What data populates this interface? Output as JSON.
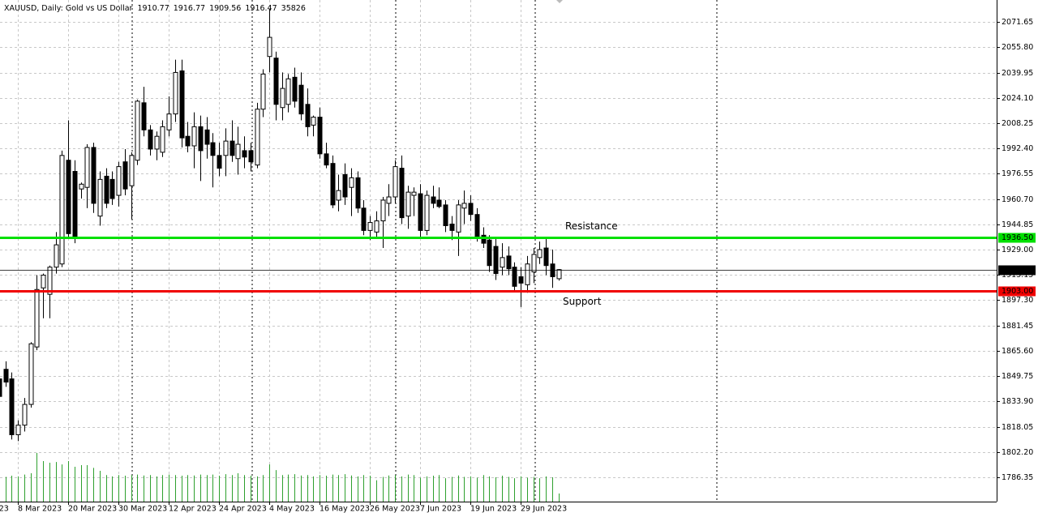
{
  "chart_data": {
    "type": "candlestick",
    "title": "XAUUSD, Daily:  Gold vs US Dollar",
    "categories": [
      "23",
      null,
      null,
      "8 Mar 2023",
      null,
      null,
      null,
      null,
      null,
      null,
      null,
      "20 Mar 2023",
      null,
      null,
      null,
      null,
      null,
      null,
      null,
      "30 Mar 2023",
      null,
      null,
      null,
      null,
      null,
      null,
      null,
      "12 Apr 2023",
      null,
      null,
      null,
      null,
      null,
      null,
      null,
      "24 Apr 2023",
      null,
      null,
      null,
      null,
      null,
      null,
      null,
      "4 May 2023",
      null,
      null,
      null,
      null,
      null,
      null,
      null,
      "16 May 2023",
      null,
      null,
      null,
      null,
      null,
      null,
      null,
      "26 May 2023",
      null,
      null,
      null,
      null,
      null,
      null,
      null,
      "7 Jun 2023",
      null,
      null,
      null,
      null,
      null,
      null,
      null,
      "19 Jun 2023",
      null,
      null,
      null,
      null,
      null,
      null,
      null,
      "29 Jun 2023",
      null,
      null,
      null,
      null,
      null,
      null
    ],
    "open": [
      1848,
      1854,
      1848,
      1813,
      1819,
      1832,
      1868,
      1905,
      1901,
      1918,
      1920,
      1985,
      1978,
      1967,
      1968,
      1993,
      1950,
      1975,
      1973,
      1963,
      1984,
      1969,
      1985,
      2021,
      2004,
      1992,
      1990,
      2004,
      2014,
      2041,
      2000,
      1994,
      2006,
      2004,
      1996,
      1988,
      1988,
      1997,
      1986,
      1991,
      1991,
      1982,
      2017,
      2050,
      2049,
      2018,
      2020,
      2037,
      2032,
      2020,
      2007,
      2012,
      1989,
      1983,
      1960,
      1976,
      1968,
      1974,
      1955,
      1941,
      1940,
      1947,
      1958,
      1962,
      1980,
      1950,
      1963,
      1964,
      1941,
      1962,
      1960,
      1957,
      1945,
      1940,
      1955,
      1958,
      1951,
      1938,
      1935,
      1931,
      1918,
      1925,
      1918,
      1912,
      1907,
      1915,
      1924,
      1930,
      1920,
      1910.77
    ],
    "high": [
      1852,
      1859,
      1852,
      1822,
      1836,
      1871,
      1913,
      1914,
      1919,
      1940,
      1991,
      2010,
      1985,
      1971,
      1995,
      1996,
      1978,
      1980,
      1978,
      1984,
      1992,
      1990,
      2023,
      2031,
      2007,
      2003,
      2010,
      2025,
      2048,
      2048,
      2009,
      2015,
      2013,
      2012,
      2002,
      1996,
      2005,
      2010,
      2006,
      2000,
      1996,
      2021,
      2042,
      2080,
      2053,
      2040,
      2039,
      2043,
      2040,
      2030,
      2013,
      2018,
      1996,
      1988,
      1976,
      1983,
      1980,
      1978,
      1960,
      1950,
      1953,
      1962,
      1970,
      1985,
      1988,
      1969,
      1968,
      1970,
      1966,
      1969,
      1968,
      1960,
      1950,
      1960,
      1966,
      1963,
      1955,
      1943,
      1938,
      1936,
      1933,
      1931,
      1921,
      1918,
      1925,
      1930,
      1934,
      1937,
      1929,
      1916.77
    ],
    "low": [
      1832,
      1843,
      1810,
      1809,
      1815,
      1830,
      1866,
      1886,
      1886,
      1914,
      1918,
      1936,
      1933,
      1961,
      1955,
      1952,
      1944,
      1955,
      1957,
      1956,
      1963,
      1948,
      1982,
      2000,
      1988,
      1985,
      1987,
      2000,
      2009,
      1993,
      1990,
      1980,
      1972,
      1986,
      1968,
      1975,
      1975,
      1984,
      1976,
      1980,
      1978,
      1980,
      2012,
      2040,
      2010,
      2010,
      2015,
      2018,
      2010,
      2000,
      2000,
      1986,
      1980,
      1955,
      1953,
      1957,
      1950,
      1952,
      1938,
      1935,
      1936,
      1930,
      1950,
      1958,
      1945,
      1942,
      1950,
      1937,
      1938,
      1955,
      1955,
      1940,
      1935,
      1925,
      1945,
      1947,
      1934,
      1930,
      1915,
      1910,
      1913,
      1913,
      1903,
      1893,
      1902,
      1908,
      1920,
      1913,
      1905,
      1909.56
    ],
    "close": [
      1837,
      1846,
      1813,
      1819,
      1832,
      1870,
      1904,
      1913,
      1918,
      1932,
      1988,
      1939,
      1937,
      1970,
      1993,
      1958,
      1973,
      1958,
      1961,
      1981,
      1967,
      1988,
      2022,
      2004,
      1992,
      2000,
      2006,
      2014,
      2040,
      1999,
      1994,
      2006,
      1991,
      1995,
      1988,
      1980,
      1997,
      1988,
      1995,
      1987,
      1984,
      2017,
      2039,
      2062,
      2020,
      2030,
      2036,
      2022,
      2014,
      2006,
      2012,
      1989,
      1982,
      1957,
      1966,
      1962,
      1974,
      1955,
      1941,
      1946,
      1947,
      1960,
      1962,
      1981,
      1949,
      1965,
      1965,
      1941,
      1963,
      1958,
      1956,
      1944,
      1941,
      1957,
      1958,
      1951,
      1937,
      1933,
      1919,
      1914,
      1924,
      1917,
      1906,
      1908,
      1920,
      1926,
      1929,
      1919,
      1912,
      1916.47
    ],
    "volume": [
      118000,
      110000,
      115000,
      112000,
      120000,
      126000,
      216000,
      180000,
      173000,
      176000,
      165000,
      180000,
      155000,
      162000,
      162000,
      150000,
      137000,
      118000,
      112000,
      118000,
      115000,
      118000,
      120000,
      116000,
      118000,
      112000,
      118000,
      120000,
      118000,
      115000,
      118000,
      116000,
      120000,
      118000,
      120000,
      115000,
      122000,
      118000,
      126000,
      118000,
      115000,
      112000,
      118000,
      165000,
      140000,
      118000,
      120000,
      122000,
      116000,
      118000,
      112000,
      118000,
      115000,
      120000,
      118000,
      122000,
      116000,
      112000,
      118000,
      115000,
      95000,
      110000,
      116000,
      118000,
      112000,
      120000,
      118000,
      106000,
      112000,
      115000,
      118000,
      104000,
      110000,
      116000,
      110000,
      112000,
      106000,
      118000,
      112000,
      108000,
      115000,
      110000,
      104000,
      112000,
      106000,
      110000,
      104000,
      112000,
      108000,
      35826
    ],
    "bull_color": "#ffffff",
    "bear_color": "#000000",
    "volume_color": "#2ea02e",
    "ylim": [
      1771.1,
      2085.4
    ],
    "yticks": [
      2071.65,
      {
        "value": 2055.8,
        "label": "2055.80"
      },
      2039.95,
      {
        "value": 2024.1,
        "label": "2024.10"
      },
      2008.25,
      {
        "value": 1992.4,
        "label": "1992.40"
      },
      1976.55,
      {
        "value": 1960.7,
        "label": "1960.70"
      },
      1944.85,
      {
        "value": 1929,
        "label": "1929.00"
      },
      1913.15,
      {
        "value": 1897.3,
        "label": "1897.30"
      },
      1881.45,
      {
        "value": 1865.6,
        "label": "1865.60"
      },
      1849.75,
      {
        "value": 1833.9,
        "label": "1833.90"
      },
      1818.05,
      {
        "value": 1802.2,
        "label": "1802.20"
      },
      1786.35
    ],
    "grid": true,
    "levels": [
      {
        "name": "Resistance",
        "value": 1936.5,
        "label": "1936.50",
        "color": "#00e000"
      },
      {
        "name": "Support",
        "value": 1903,
        "label": "1903.00",
        "color": "#f00000"
      }
    ]
  }
}
